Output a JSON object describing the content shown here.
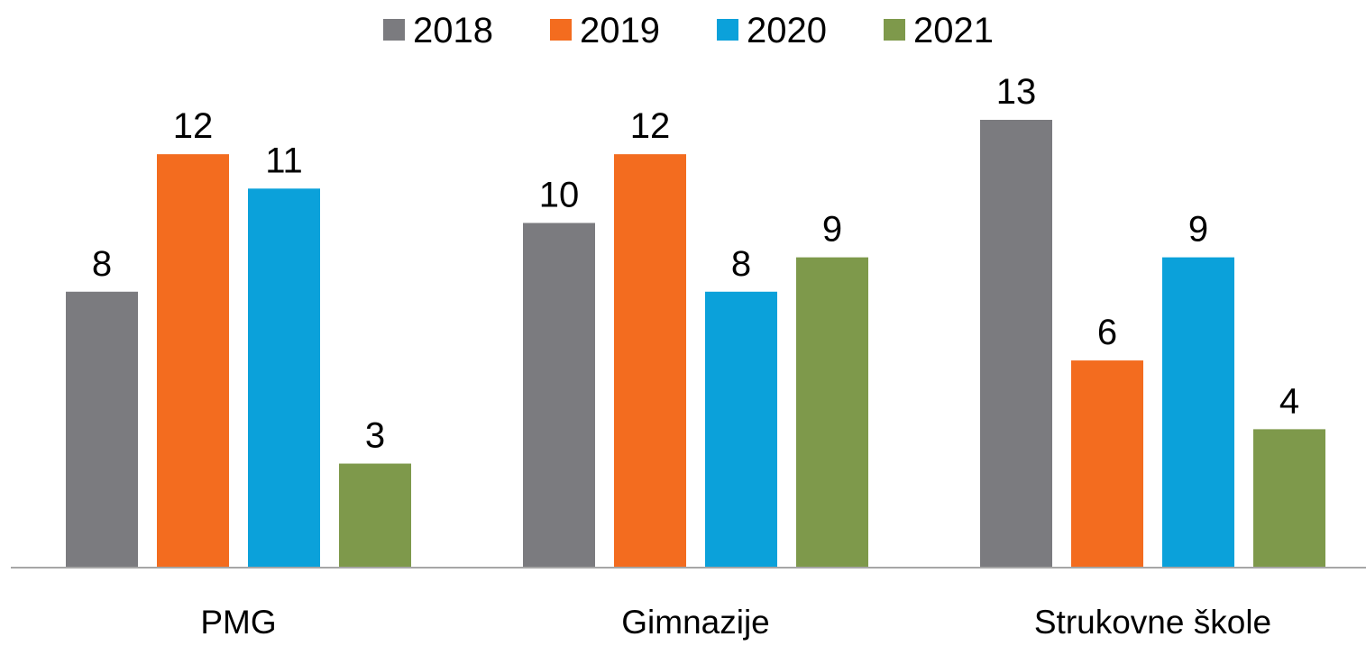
{
  "chart_data": {
    "type": "bar",
    "categories": [
      "PMG",
      "Gimnazije",
      "Strukovne škole"
    ],
    "series": [
      {
        "name": "2018",
        "color": "#7b7b7f",
        "values": [
          8,
          10,
          13
        ]
      },
      {
        "name": "2019",
        "color": "#f36c1f",
        "values": [
          12,
          12,
          6
        ]
      },
      {
        "name": "2020",
        "color": "#0ba1da",
        "values": [
          11,
          8,
          9
        ]
      },
      {
        "name": "2021",
        "color": "#7e994b",
        "values": [
          3,
          9,
          4
        ]
      }
    ]
  }
}
